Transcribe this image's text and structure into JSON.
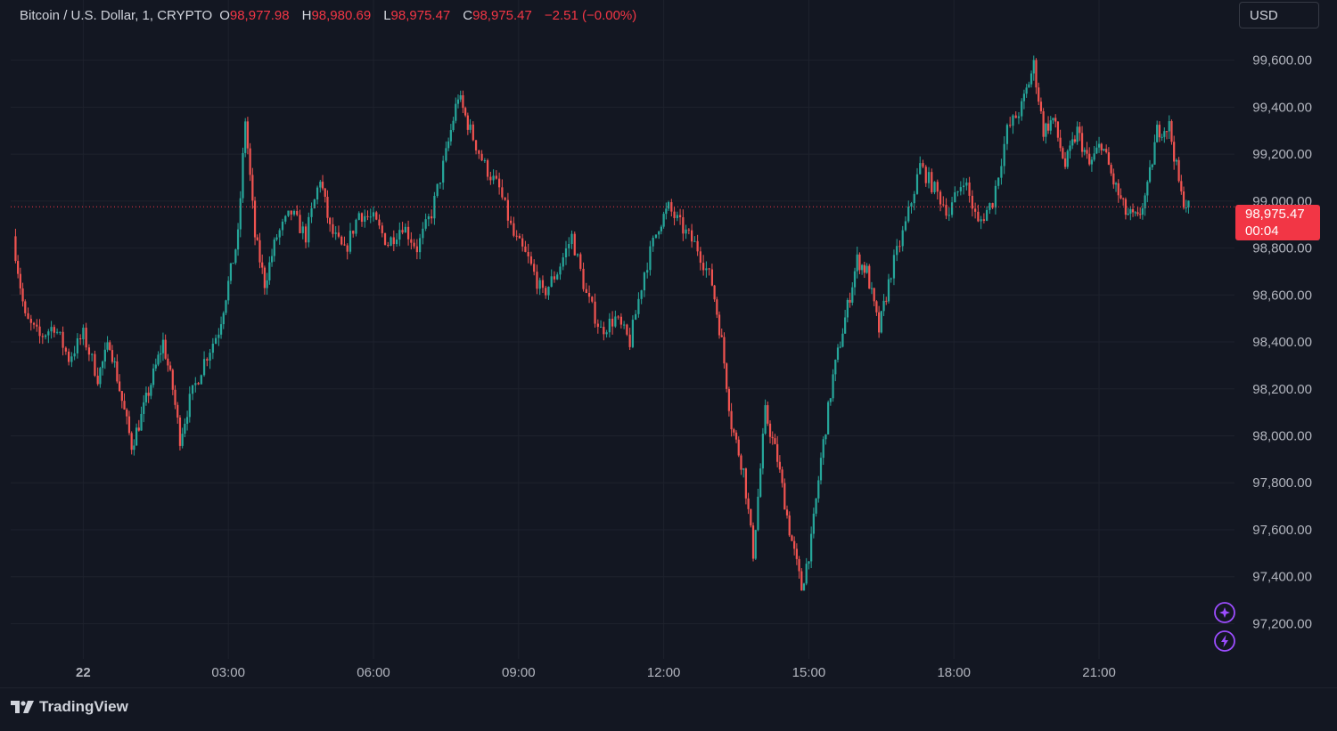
{
  "legend": {
    "symbol": "Bitcoin / U.S. Dollar, 1, CRYPTO",
    "o_label": "O",
    "o_value": "98,977.98",
    "h_label": "H",
    "h_value": "98,980.69",
    "l_label": "L",
    "l_value": "98,975.47",
    "c_label": "C",
    "c_value": "98,975.47",
    "change": "−2.51 (−0.00%)"
  },
  "currency_button": "USD",
  "price_tag": {
    "price": "98,975.47",
    "countdown": "00:04",
    "color": "#f23645"
  },
  "branding": "TradingView",
  "colors": {
    "up": "#26a69a",
    "down": "#ef5350",
    "background": "#131722",
    "grid": "#1e222d",
    "accent": "#9c4dff"
  },
  "icons": [
    "sparkle-icon",
    "lightning-icon"
  ],
  "chart_data": {
    "type": "candlestick",
    "interval": "1 minute",
    "y_axis": {
      "min": 97050,
      "max": 99720,
      "ticks": [
        97200,
        97400,
        97600,
        97800,
        98000,
        98200,
        98400,
        98600,
        98800,
        99000,
        99200,
        99400,
        99600
      ],
      "tick_labels": [
        "97,200.00",
        "97,400.00",
        "97,600.00",
        "97,800.00",
        "98,000.00",
        "98,200.00",
        "98,400.00",
        "98,600.00",
        "98,800.00",
        "99,000.00",
        "99,200.00",
        "99,400.00",
        "99,600.00"
      ]
    },
    "x_axis": {
      "start_hour": -1.5,
      "end_hour": 23.8,
      "ticks": [
        0,
        3,
        6,
        9,
        12,
        15,
        18,
        21
      ],
      "tick_labels": [
        "22",
        "03:00",
        "06:00",
        "09:00",
        "12:00",
        "15:00",
        "18:00",
        "21:00"
      ]
    },
    "last_price": 98975.47,
    "path": [
      [
        -1.45,
        98850
      ],
      [
        -1.2,
        98500
      ],
      [
        -0.9,
        98420
      ],
      [
        -0.6,
        98470
      ],
      [
        -0.3,
        98330
      ],
      [
        0.0,
        98430
      ],
      [
        0.3,
        98250
      ],
      [
        0.55,
        98400
      ],
      [
        0.8,
        98150
      ],
      [
        1.0,
        97960
      ],
      [
        1.2,
        98080
      ],
      [
        1.45,
        98260
      ],
      [
        1.65,
        98400
      ],
      [
        1.85,
        98200
      ],
      [
        2.0,
        97990
      ],
      [
        2.2,
        98150
      ],
      [
        2.5,
        98320
      ],
      [
        2.8,
        98450
      ],
      [
        3.0,
        98650
      ],
      [
        3.2,
        98850
      ],
      [
        3.35,
        99350
      ],
      [
        3.55,
        98850
      ],
      [
        3.75,
        98650
      ],
      [
        4.0,
        98850
      ],
      [
        4.3,
        98950
      ],
      [
        4.6,
        98850
      ],
      [
        4.9,
        99100
      ],
      [
        5.1,
        98880
      ],
      [
        5.4,
        98780
      ],
      [
        5.7,
        98950
      ],
      [
        6.0,
        98920
      ],
      [
        6.3,
        98820
      ],
      [
        6.6,
        98900
      ],
      [
        6.9,
        98800
      ],
      [
        7.2,
        98950
      ],
      [
        7.5,
        99200
      ],
      [
        7.75,
        99450
      ],
      [
        8.0,
        99300
      ],
      [
        8.3,
        99150
      ],
      [
        8.6,
        99050
      ],
      [
        8.9,
        98850
      ],
      [
        9.2,
        98750
      ],
      [
        9.5,
        98600
      ],
      [
        9.8,
        98700
      ],
      [
        10.1,
        98850
      ],
      [
        10.4,
        98600
      ],
      [
        10.7,
        98450
      ],
      [
        11.0,
        98500
      ],
      [
        11.3,
        98400
      ],
      [
        11.6,
        98700
      ],
      [
        11.9,
        98900
      ],
      [
        12.1,
        98970
      ],
      [
        12.4,
        98880
      ],
      [
        12.7,
        98800
      ],
      [
        13.0,
        98650
      ],
      [
        13.2,
        98400
      ],
      [
        13.4,
        98050
      ],
      [
        13.65,
        97850
      ],
      [
        13.85,
        97500
      ],
      [
        14.1,
        98100
      ],
      [
        14.35,
        97900
      ],
      [
        14.6,
        97600
      ],
      [
        14.85,
        97350
      ],
      [
        15.05,
        97550
      ],
      [
        15.25,
        97900
      ],
      [
        15.5,
        98250
      ],
      [
        15.75,
        98500
      ],
      [
        16.0,
        98750
      ],
      [
        16.2,
        98700
      ],
      [
        16.45,
        98450
      ],
      [
        16.7,
        98700
      ],
      [
        17.0,
        98900
      ],
      [
        17.3,
        99150
      ],
      [
        17.6,
        99050
      ],
      [
        17.9,
        98950
      ],
      [
        18.2,
        99100
      ],
      [
        18.5,
        98900
      ],
      [
        18.8,
        99000
      ],
      [
        19.1,
        99300
      ],
      [
        19.4,
        99400
      ],
      [
        19.65,
        99580
      ],
      [
        19.85,
        99300
      ],
      [
        20.05,
        99350
      ],
      [
        20.3,
        99150
      ],
      [
        20.55,
        99300
      ],
      [
        20.8,
        99150
      ],
      [
        21.05,
        99250
      ],
      [
        21.3,
        99080
      ],
      [
        21.55,
        98950
      ],
      [
        21.8,
        98920
      ],
      [
        22.0,
        99050
      ],
      [
        22.2,
        99300
      ],
      [
        22.45,
        99320
      ],
      [
        22.7,
        99020
      ],
      [
        22.85,
        98975
      ]
    ]
  }
}
